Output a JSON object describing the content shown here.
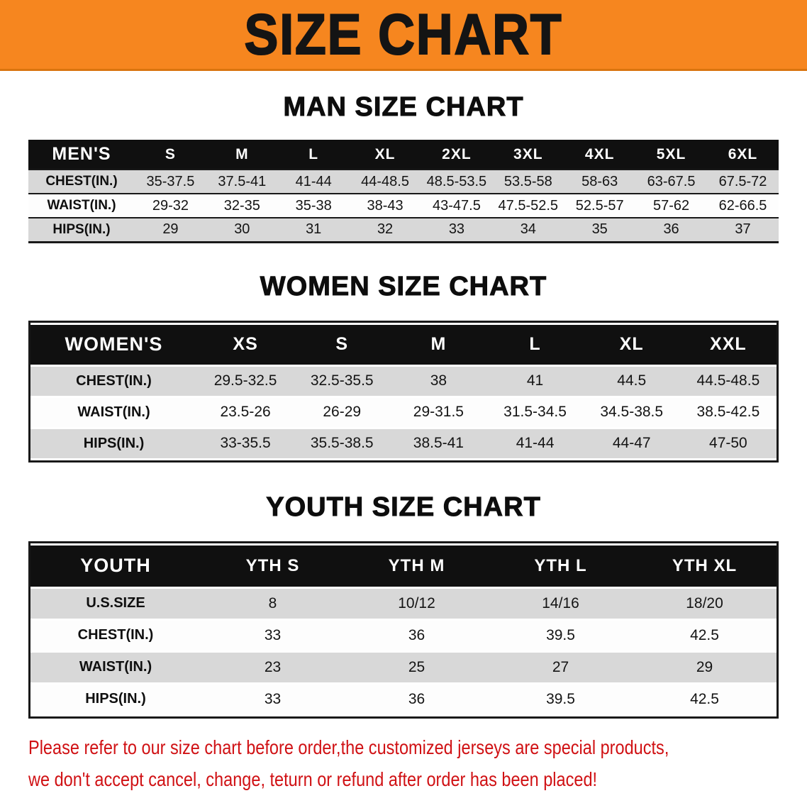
{
  "banner": {
    "title": "SIZE CHART"
  },
  "sections": [
    {
      "heading": "MAN SIZE CHART",
      "table": {
        "header": [
          "MEN'S",
          "S",
          "M",
          "L",
          "XL",
          "2XL",
          "3XL",
          "4XL",
          "5XL",
          "6XL"
        ],
        "rows": [
          [
            "CHEST(IN.)",
            "35-37.5",
            "37.5-41",
            "41-44",
            "44-48.5",
            "48.5-53.5",
            "53.5-58",
            "58-63",
            "63-67.5",
            "67.5-72"
          ],
          [
            "WAIST(IN.)",
            "29-32",
            "32-35",
            "35-38",
            "38-43",
            "43-47.5",
            "47.5-52.5",
            "52.5-57",
            "57-62",
            "62-66.5"
          ],
          [
            "HIPS(IN.)",
            "29",
            "30",
            "31",
            "32",
            "33",
            "34",
            "35",
            "36",
            "37"
          ]
        ]
      }
    },
    {
      "heading": "WOMEN SIZE CHART",
      "table": {
        "header": [
          "WOMEN'S",
          "XS",
          "S",
          "M",
          "L",
          "XL",
          "XXL"
        ],
        "rows": [
          [
            "CHEST(IN.)",
            "29.5-32.5",
            "32.5-35.5",
            "38",
            "41",
            "44.5",
            "44.5-48.5"
          ],
          [
            "WAIST(IN.)",
            "23.5-26",
            "26-29",
            "29-31.5",
            "31.5-34.5",
            "34.5-38.5",
            "38.5-42.5"
          ],
          [
            "HIPS(IN.)",
            "33-35.5",
            "35.5-38.5",
            "38.5-41",
            "41-44",
            "44-47",
            "47-50"
          ]
        ]
      }
    },
    {
      "heading": "YOUTH SIZE CHART",
      "table": {
        "header": [
          "YOUTH",
          "YTH S",
          "YTH M",
          "YTH L",
          "YTH XL"
        ],
        "rows": [
          [
            "U.S.SIZE",
            "8",
            "10/12",
            "14/16",
            "18/20"
          ],
          [
            "CHEST(IN.)",
            "33",
            "36",
            "39.5",
            "42.5"
          ],
          [
            "WAIST(IN.)",
            "23",
            "25",
            "27",
            "29"
          ],
          [
            "HIPS(IN.)",
            "33",
            "36",
            "39.5",
            "42.5"
          ]
        ]
      }
    }
  ],
  "disclaimer": {
    "line1": "Please refer to our size chart before order,the customized jerseys are special products,",
    "line2": "we don't accept cancel, change, teturn or refund after order has been placed!"
  },
  "colors": {
    "banner_bg": "#f6861f",
    "header_bg": "#101010",
    "row_alt": "#d8d8d8",
    "accent_border": "#191919",
    "disclaimer_red": "#d01114"
  }
}
